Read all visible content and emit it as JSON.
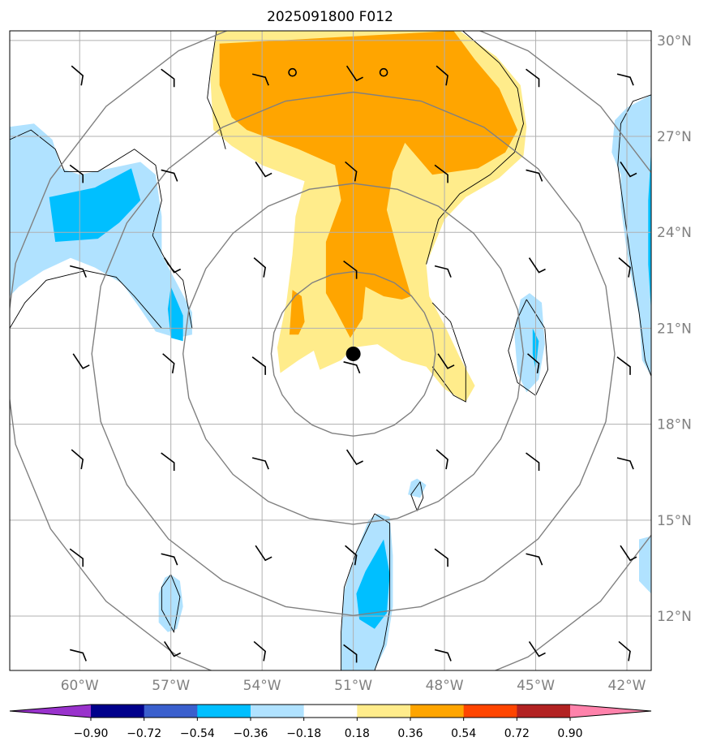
{
  "chart_data": {
    "type": "heatmap",
    "title": "2025091800 F012",
    "projection": "lat-lon map",
    "xlim": [
      -62.3,
      -41.2
    ],
    "ylim": [
      10.3,
      30.3
    ],
    "lon_ticks": [
      {
        "value": -60,
        "label": "60°W"
      },
      {
        "value": -57,
        "label": "57°W"
      },
      {
        "value": -54,
        "label": "54°W"
      },
      {
        "value": -51,
        "label": "51°W"
      },
      {
        "value": -48,
        "label": "48°W"
      },
      {
        "value": -45,
        "label": "45°W"
      },
      {
        "value": -42,
        "label": "42°W"
      }
    ],
    "lat_ticks": [
      {
        "value": 30,
        "label": "30°N"
      },
      {
        "value": 27,
        "label": "27°N"
      },
      {
        "value": 24,
        "label": "24°N"
      },
      {
        "value": 21,
        "label": "21°N"
      },
      {
        "value": 18,
        "label": "18°N"
      },
      {
        "value": 15,
        "label": "15°N"
      },
      {
        "value": 12,
        "label": "12°N"
      }
    ],
    "grid": true,
    "center": {
      "lon": -51.0,
      "lat": 20.2
    },
    "range_rings_deg": [
      2.7,
      5.6,
      8.6,
      11.5
    ],
    "colorbar": {
      "position": "bottom",
      "extend": "both",
      "levels": [
        -0.9,
        -0.72,
        -0.54,
        -0.36,
        -0.18,
        0.18,
        0.36,
        0.54,
        0.72,
        0.9
      ],
      "tick_labels": [
        "−0.90",
        "−0.72",
        "−0.54",
        "−0.36",
        "−0.18",
        "0.18",
        "0.36",
        "0.54",
        "0.72",
        "0.90"
      ],
      "colors": [
        "#9932cc",
        "#00008b",
        "#3a5fcd",
        "#00bfff",
        "#b0e2ff",
        "#ffffff",
        "#ffec8b",
        "#ffa500",
        "#ff4500",
        "#b22222",
        "#ff82ab"
      ]
    },
    "filled_regions": [
      {
        "level": 0.18,
        "color": "#ffec8b",
        "points": [
          [
            -55.5,
            30.3
          ],
          [
            -47.5,
            30.3
          ],
          [
            -46.3,
            29.5
          ],
          [
            -45.5,
            28.6
          ],
          [
            -45.3,
            27.3
          ],
          [
            -45.4,
            26.4
          ],
          [
            -46.2,
            25.7
          ],
          [
            -47.3,
            25.1
          ],
          [
            -48.0,
            24.4
          ],
          [
            -48.6,
            23.0
          ],
          [
            -48.5,
            22.0
          ],
          [
            -48.0,
            21.1
          ],
          [
            -47.5,
            20.1
          ],
          [
            -47.0,
            19.2
          ],
          [
            -47.3,
            18.7
          ],
          [
            -48.0,
            19.1
          ],
          [
            -48.6,
            19.8
          ],
          [
            -49.4,
            20.0
          ],
          [
            -50.2,
            20.5
          ],
          [
            -51.0,
            20.4
          ],
          [
            -51.4,
            20.0
          ],
          [
            -52.1,
            19.7
          ],
          [
            -52.3,
            20.3
          ],
          [
            -52.8,
            20.0
          ],
          [
            -53.4,
            19.6
          ],
          [
            -53.5,
            20.4
          ],
          [
            -53.2,
            21.8
          ],
          [
            -53.0,
            23.3
          ],
          [
            -52.9,
            24.5
          ],
          [
            -52.6,
            25.6
          ],
          [
            -54.0,
            26.1
          ],
          [
            -55.0,
            26.7
          ],
          [
            -55.6,
            27.2
          ],
          [
            -55.7,
            28.8
          ],
          [
            -55.5,
            30.3
          ]
        ]
      },
      {
        "level": 0.36,
        "color": "#ffa500",
        "points": [
          [
            -55.4,
            29.9
          ],
          [
            -47.7,
            30.3
          ],
          [
            -47.0,
            29.4
          ],
          [
            -46.2,
            28.5
          ],
          [
            -45.6,
            27.2
          ],
          [
            -46.0,
            26.5
          ],
          [
            -46.9,
            26.0
          ],
          [
            -48.4,
            25.8
          ],
          [
            -49.3,
            26.8
          ],
          [
            -49.7,
            25.9
          ],
          [
            -49.9,
            24.7
          ],
          [
            -49.5,
            23.3
          ],
          [
            -49.1,
            22.0
          ],
          [
            -49.4,
            21.9
          ],
          [
            -50.0,
            22.0
          ],
          [
            -50.6,
            22.3
          ],
          [
            -50.7,
            21.3
          ],
          [
            -51.1,
            20.7
          ],
          [
            -51.6,
            21.6
          ],
          [
            -51.9,
            22.1
          ],
          [
            -51.9,
            23.7
          ],
          [
            -51.4,
            25.0
          ],
          [
            -51.6,
            26.1
          ],
          [
            -52.8,
            26.6
          ],
          [
            -54.5,
            27.2
          ],
          [
            -55.0,
            27.6
          ],
          [
            -55.4,
            28.6
          ],
          [
            -55.4,
            29.9
          ]
        ]
      },
      {
        "level": 0.36,
        "color": "#ffa500",
        "points": [
          [
            -53.0,
            22.2
          ],
          [
            -52.7,
            22.0
          ],
          [
            -52.6,
            21.2
          ],
          [
            -52.8,
            20.8
          ],
          [
            -53.1,
            20.8
          ],
          [
            -53.0,
            22.2
          ]
        ]
      },
      {
        "level": -0.18,
        "color": "#b0e2ff",
        "points": [
          [
            -62.3,
            27.3
          ],
          [
            -61.5,
            27.4
          ],
          [
            -60.9,
            26.9
          ],
          [
            -60.6,
            26.0
          ],
          [
            -60.0,
            25.8
          ],
          [
            -59.0,
            26.0
          ],
          [
            -58.0,
            26.2
          ],
          [
            -57.5,
            25.8
          ],
          [
            -57.3,
            24.5
          ],
          [
            -57.3,
            23.3
          ],
          [
            -56.8,
            22.4
          ],
          [
            -56.3,
            21.5
          ],
          [
            -56.3,
            20.8
          ],
          [
            -56.8,
            20.7
          ],
          [
            -57.5,
            20.9
          ],
          [
            -58.0,
            21.6
          ],
          [
            -58.6,
            22.4
          ],
          [
            -59.5,
            22.9
          ],
          [
            -60.3,
            23.2
          ],
          [
            -61.2,
            22.8
          ],
          [
            -62.0,
            22.3
          ],
          [
            -62.3,
            22.0
          ],
          [
            -62.3,
            27.3
          ]
        ]
      },
      {
        "level": -0.18,
        "color": "#b0e2ff",
        "points": [
          [
            -45.2,
            22.1
          ],
          [
            -44.8,
            21.8
          ],
          [
            -44.7,
            20.5
          ],
          [
            -44.9,
            19.4
          ],
          [
            -45.3,
            19.0
          ],
          [
            -45.6,
            19.6
          ],
          [
            -45.7,
            20.8
          ],
          [
            -45.5,
            21.9
          ],
          [
            -45.2,
            22.1
          ]
        ]
      },
      {
        "level": -0.18,
        "color": "#b0e2ff",
        "points": [
          [
            -41.2,
            28.3
          ],
          [
            -41.6,
            28.1
          ],
          [
            -42.0,
            27.9
          ],
          [
            -42.4,
            27.5
          ],
          [
            -42.5,
            26.5
          ],
          [
            -42.2,
            25.8
          ],
          [
            -42.2,
            24.8
          ],
          [
            -42.0,
            23.4
          ],
          [
            -41.8,
            22.3
          ],
          [
            -41.6,
            21.4
          ],
          [
            -41.5,
            20.0
          ],
          [
            -41.2,
            19.5
          ],
          [
            -41.2,
            28.3
          ]
        ]
      },
      {
        "level": -0.18,
        "color": "#b0e2ff",
        "points": [
          [
            -50.2,
            15.2
          ],
          [
            -49.8,
            15.1
          ],
          [
            -49.7,
            13.9
          ],
          [
            -49.7,
            12.3
          ],
          [
            -49.9,
            11.1
          ],
          [
            -50.3,
            10.3
          ],
          [
            -51.4,
            10.3
          ],
          [
            -51.4,
            11.3
          ],
          [
            -51.3,
            12.8
          ],
          [
            -50.9,
            14.0
          ],
          [
            -50.5,
            15.0
          ],
          [
            -50.2,
            15.2
          ]
        ]
      },
      {
        "level": -0.18,
        "color": "#b0e2ff",
        "points": [
          [
            -57.0,
            13.3
          ],
          [
            -56.7,
            13.1
          ],
          [
            -56.6,
            12.3
          ],
          [
            -56.8,
            11.6
          ],
          [
            -57.1,
            11.5
          ],
          [
            -57.4,
            11.8
          ],
          [
            -57.4,
            12.7
          ],
          [
            -57.2,
            13.2
          ],
          [
            -57.0,
            13.3
          ]
        ]
      },
      {
        "level": -0.18,
        "color": "#b0e2ff",
        "points": [
          [
            -48.9,
            16.3
          ],
          [
            -48.6,
            16.1
          ],
          [
            -48.8,
            15.7
          ],
          [
            -49.2,
            15.8
          ],
          [
            -49.1,
            16.2
          ],
          [
            -48.9,
            16.3
          ]
        ]
      },
      {
        "level": -0.18,
        "color": "#b0e2ff",
        "points": [
          [
            -41.2,
            14.5
          ],
          [
            -41.6,
            14.4
          ],
          [
            -41.6,
            13.1
          ],
          [
            -41.2,
            12.7
          ],
          [
            -41.2,
            14.5
          ]
        ]
      },
      {
        "level": -0.36,
        "color": "#00bfff",
        "points": [
          [
            -61.0,
            25.1
          ],
          [
            -59.5,
            25.4
          ],
          [
            -58.3,
            26.0
          ],
          [
            -58.0,
            25.0
          ],
          [
            -58.7,
            24.3
          ],
          [
            -59.4,
            23.8
          ],
          [
            -60.8,
            23.7
          ],
          [
            -61.0,
            25.1
          ]
        ]
      },
      {
        "level": -0.36,
        "color": "#00bfff",
        "points": [
          [
            -57.0,
            22.3
          ],
          [
            -56.6,
            21.4
          ],
          [
            -56.6,
            20.6
          ],
          [
            -57.0,
            20.7
          ],
          [
            -57.1,
            21.6
          ],
          [
            -57.0,
            22.3
          ]
        ]
      },
      {
        "level": -0.36,
        "color": "#00bfff",
        "points": [
          [
            -45.1,
            21.0
          ],
          [
            -44.9,
            20.6
          ],
          [
            -45.0,
            19.7
          ],
          [
            -45.1,
            20.2
          ],
          [
            -45.1,
            21.0
          ]
        ]
      },
      {
        "level": -0.36,
        "color": "#00bfff",
        "points": [
          [
            -50.0,
            14.4
          ],
          [
            -49.8,
            13.3
          ],
          [
            -49.9,
            12.1
          ],
          [
            -50.3,
            11.6
          ],
          [
            -50.8,
            11.9
          ],
          [
            -50.9,
            12.7
          ],
          [
            -50.6,
            13.4
          ],
          [
            -50.0,
            14.4
          ]
        ]
      },
      {
        "level": -0.36,
        "color": "#00bfff",
        "points": [
          [
            -41.2,
            26.6
          ],
          [
            -41.3,
            25.0
          ],
          [
            -41.3,
            23.0
          ],
          [
            -41.2,
            21.5
          ],
          [
            -41.2,
            26.6
          ]
        ]
      }
    ],
    "contour_lines": [
      [
        [
          -55.5,
          30.3
        ],
        [
          -55.7,
          29.0
        ],
        [
          -55.8,
          28.2
        ],
        [
          -55.4,
          27.3
        ],
        [
          -55.2,
          26.6
        ]
      ],
      [
        [
          -47.4,
          30.3
        ],
        [
          -46.2,
          29.3
        ],
        [
          -45.6,
          28.5
        ],
        [
          -45.4,
          27.4
        ],
        [
          -45.7,
          26.5
        ],
        [
          -46.5,
          25.8
        ],
        [
          -47.5,
          25.2
        ],
        [
          -48.2,
          24.4
        ],
        [
          -48.6,
          23.0
        ]
      ],
      [
        [
          -48.4,
          21.8
        ],
        [
          -47.8,
          21.2
        ],
        [
          -47.3,
          19.8
        ],
        [
          -47.3,
          18.7
        ],
        [
          -47.7,
          18.9
        ],
        [
          -48.4,
          19.8
        ]
      ],
      [
        [
          -62.3,
          26.9
        ],
        [
          -61.6,
          27.2
        ],
        [
          -60.8,
          26.6
        ],
        [
          -60.5,
          25.9
        ],
        [
          -59.4,
          25.9
        ],
        [
          -58.2,
          26.6
        ],
        [
          -57.5,
          26.1
        ],
        [
          -57.3,
          25.0
        ],
        [
          -57.6,
          23.9
        ],
        [
          -57.1,
          23.0
        ],
        [
          -56.6,
          22.5
        ],
        [
          -56.3,
          21.0
        ],
        [
          -57.3,
          21.0
        ],
        [
          -58.2,
          22.0
        ],
        [
          -58.8,
          22.6
        ],
        [
          -59.8,
          22.8
        ],
        [
          -61.1,
          22.5
        ],
        [
          -61.8,
          21.8
        ],
        [
          -62.3,
          21.0
        ]
      ],
      [
        [
          -45.3,
          21.9
        ],
        [
          -44.7,
          21.0
        ],
        [
          -44.6,
          19.7
        ],
        [
          -45.0,
          18.9
        ],
        [
          -45.6,
          19.3
        ],
        [
          -45.9,
          20.3
        ],
        [
          -45.6,
          21.3
        ],
        [
          -45.3,
          21.9
        ]
      ],
      [
        [
          -50.3,
          15.2
        ],
        [
          -49.8,
          14.9
        ],
        [
          -49.8,
          13.5
        ],
        [
          -49.8,
          12.2
        ],
        [
          -50.0,
          11.1
        ],
        [
          -50.3,
          10.3
        ]
      ],
      [
        [
          -51.4,
          10.3
        ],
        [
          -51.4,
          11.5
        ],
        [
          -51.3,
          12.9
        ],
        [
          -50.9,
          14.0
        ],
        [
          -50.3,
          15.2
        ]
      ],
      [
        [
          -57.0,
          13.3
        ],
        [
          -56.7,
          12.6
        ],
        [
          -56.9,
          11.5
        ],
        [
          -57.3,
          12.2
        ],
        [
          -57.3,
          12.9
        ],
        [
          -57.0,
          13.3
        ]
      ],
      [
        [
          -41.2,
          28.3
        ],
        [
          -41.8,
          28.1
        ],
        [
          -42.2,
          27.4
        ],
        [
          -42.3,
          26.1
        ],
        [
          -42.1,
          24.7
        ],
        [
          -41.9,
          23.3
        ],
        [
          -41.6,
          21.5
        ],
        [
          -41.4,
          20.0
        ],
        [
          -41.2,
          19.5
        ]
      ],
      [
        [
          -48.8,
          16.2
        ],
        [
          -48.7,
          15.7
        ],
        [
          -48.9,
          15.3
        ],
        [
          -49.1,
          15.8
        ],
        [
          -48.8,
          16.2
        ]
      ]
    ],
    "markers": [
      {
        "type": "center",
        "lon": -51.0,
        "lat": 20.2
      },
      {
        "type": "open-circle",
        "lon": -53.0,
        "lat": 29.0
      },
      {
        "type": "open-circle",
        "lon": -50.0,
        "lat": 29.0
      }
    ],
    "wind_barbs": {
      "lons": [
        -60,
        -57,
        -54,
        -51,
        -48,
        -45,
        -42
      ],
      "lats": [
        29,
        26,
        23,
        20,
        17,
        14,
        11
      ]
    }
  }
}
